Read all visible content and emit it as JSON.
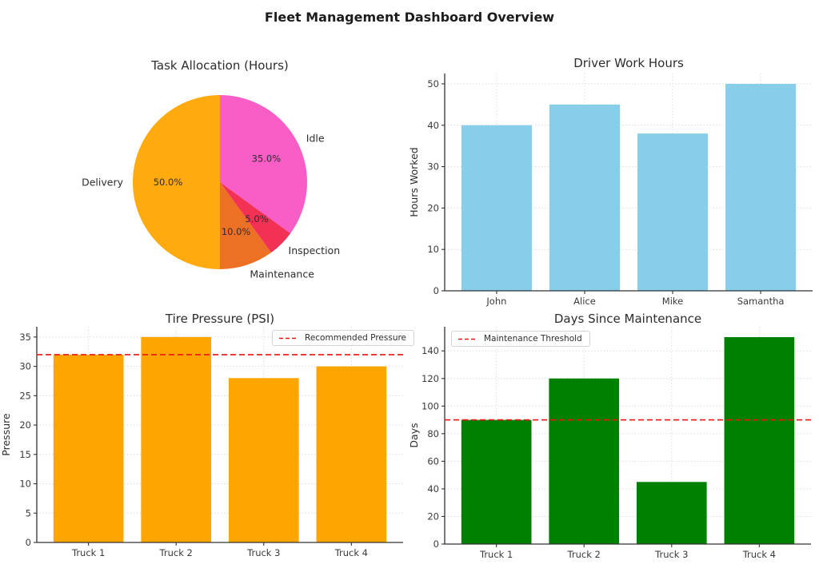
{
  "page_title": "Fleet Management Dashboard Overview",
  "colors": {
    "background": "#ffffff",
    "text": "#2d2d2d",
    "tick_text": "#3a3a3a",
    "spine": "#333333",
    "grid": "#d8d8d8",
    "threshold_red": "#f21212"
  },
  "chart_data": [
    {
      "id": "task_allocation",
      "type": "pie",
      "title": "Task Allocation (Hours)",
      "labels": [
        "Delivery",
        "Maintenance",
        "Inspection",
        "Idle"
      ],
      "values_pct": [
        50.0,
        10.0,
        5.0,
        35.0
      ],
      "pct_labels": [
        "50.0%",
        "10.0%",
        "5.0%",
        "35.0%"
      ],
      "slice_colors": [
        "#ffaa0e",
        "#ed7124",
        "#f23154",
        "#f95ec6"
      ],
      "start_angle": 90,
      "counterclockwise": true,
      "legend_position": "none"
    },
    {
      "id": "driver_work_hours",
      "type": "bar",
      "title": "Driver Work Hours",
      "categories": [
        "John",
        "Alice",
        "Mike",
        "Samantha"
      ],
      "values": [
        40,
        45,
        38,
        50
      ],
      "xlabel": "",
      "ylabel": "Hours Worked",
      "yticks": [
        0,
        10,
        20,
        30,
        40,
        50
      ],
      "ylim": [
        0,
        52.5
      ],
      "bar_color": "#87ceeb",
      "grid": true
    },
    {
      "id": "tire_pressure",
      "type": "bar",
      "title": "Tire Pressure (PSI)",
      "categories": [
        "Truck 1",
        "Truck 2",
        "Truck 3",
        "Truck 4"
      ],
      "values": [
        32,
        35,
        28,
        30
      ],
      "xlabel": "",
      "ylabel": "Pressure",
      "yticks": [
        0,
        5,
        10,
        15,
        20,
        25,
        30,
        35
      ],
      "ylim": [
        0,
        36.75
      ],
      "bar_color": "#ffa500",
      "grid": true,
      "threshold": {
        "value": 32,
        "label": "Recommended Pressure",
        "color": "#f21212",
        "style": "dashed",
        "legend_position": "top-right"
      }
    },
    {
      "id": "days_since_maintenance",
      "type": "bar",
      "title": "Days Since Maintenance",
      "categories": [
        "Truck 1",
        "Truck 2",
        "Truck 3",
        "Truck 4"
      ],
      "values": [
        90,
        120,
        45,
        150
      ],
      "xlabel": "",
      "ylabel": "Days",
      "yticks": [
        0,
        20,
        40,
        60,
        80,
        100,
        120,
        140
      ],
      "ylim": [
        0,
        157.5
      ],
      "bar_color": "#008000",
      "grid": true,
      "threshold": {
        "value": 90,
        "label": "Maintenance Threshold",
        "color": "#f21212",
        "style": "dashed",
        "legend_position": "top-left"
      }
    }
  ]
}
